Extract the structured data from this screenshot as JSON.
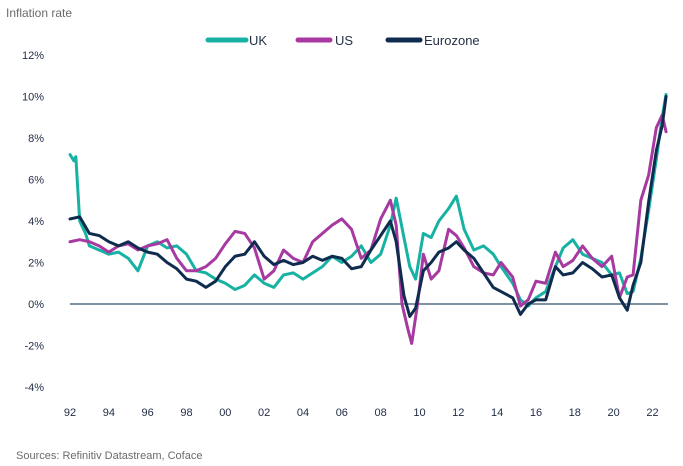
{
  "chart_data": {
    "type": "line",
    "ylabel": "Inflation rate",
    "legend_position": "top-center",
    "y_ticks": [
      "12%",
      "10%",
      "8%",
      "6%",
      "4%",
      "2%",
      "0%",
      "-2%",
      "-4%"
    ],
    "x_ticks": [
      "92",
      "94",
      "96",
      "98",
      "00",
      "02",
      "04",
      "06",
      "08",
      "10",
      "12",
      "14",
      "16",
      "18",
      "20",
      "22"
    ],
    "source": "Sources: Refinitiv Datastream, Coface",
    "ylim": [
      -4,
      12
    ],
    "xlim": [
      1992,
      2022.8
    ],
    "series": [
      {
        "name": "UK",
        "color": "#17b2a3",
        "points": [
          [
            1992.0,
            7.2
          ],
          [
            1992.2,
            6.9
          ],
          [
            1992.3,
            7.1
          ],
          [
            1992.5,
            4.0
          ],
          [
            1992.8,
            3.4
          ],
          [
            1993.0,
            2.8
          ],
          [
            1993.5,
            2.6
          ],
          [
            1994.0,
            2.4
          ],
          [
            1994.5,
            2.5
          ],
          [
            1995.0,
            2.2
          ],
          [
            1995.5,
            1.6
          ],
          [
            1996.0,
            2.8
          ],
          [
            1996.5,
            3.0
          ],
          [
            1997.0,
            2.7
          ],
          [
            1997.5,
            2.8
          ],
          [
            1998.0,
            2.4
          ],
          [
            1998.5,
            1.6
          ],
          [
            1999.0,
            1.5
          ],
          [
            1999.5,
            1.2
          ],
          [
            2000.0,
            1.0
          ],
          [
            2000.5,
            0.7
          ],
          [
            2001.0,
            0.9
          ],
          [
            2001.5,
            1.4
          ],
          [
            2002.0,
            1.0
          ],
          [
            2002.5,
            0.8
          ],
          [
            2003.0,
            1.4
          ],
          [
            2003.5,
            1.5
          ],
          [
            2004.0,
            1.2
          ],
          [
            2004.5,
            1.5
          ],
          [
            2005.0,
            1.8
          ],
          [
            2005.5,
            2.3
          ],
          [
            2006.0,
            2.0
          ],
          [
            2006.5,
            2.3
          ],
          [
            2007.0,
            2.8
          ],
          [
            2007.5,
            2.0
          ],
          [
            2008.0,
            2.4
          ],
          [
            2008.5,
            3.8
          ],
          [
            2008.8,
            5.1
          ],
          [
            2009.2,
            3.2
          ],
          [
            2009.5,
            1.8
          ],
          [
            2009.8,
            1.2
          ],
          [
            2010.2,
            3.4
          ],
          [
            2010.6,
            3.2
          ],
          [
            2011.0,
            4.0
          ],
          [
            2011.5,
            4.6
          ],
          [
            2011.9,
            5.2
          ],
          [
            2012.3,
            3.6
          ],
          [
            2012.8,
            2.6
          ],
          [
            2013.3,
            2.8
          ],
          [
            2013.8,
            2.4
          ],
          [
            2014.2,
            1.8
          ],
          [
            2014.8,
            1.0
          ],
          [
            2015.2,
            0.2
          ],
          [
            2015.6,
            -0.1
          ],
          [
            2016.0,
            0.3
          ],
          [
            2016.5,
            0.6
          ],
          [
            2017.0,
            1.8
          ],
          [
            2017.4,
            2.7
          ],
          [
            2017.9,
            3.1
          ],
          [
            2018.4,
            2.4
          ],
          [
            2018.9,
            2.2
          ],
          [
            2019.4,
            2.0
          ],
          [
            2019.9,
            1.4
          ],
          [
            2020.3,
            1.5
          ],
          [
            2020.7,
            0.5
          ],
          [
            2021.0,
            0.6
          ],
          [
            2021.4,
            2.2
          ],
          [
            2021.8,
            4.5
          ],
          [
            2022.2,
            7.0
          ],
          [
            2022.5,
            9.0
          ],
          [
            2022.7,
            10.1
          ]
        ]
      },
      {
        "name": "US",
        "color": "#a63aa1",
        "points": [
          [
            1992.0,
            3.0
          ],
          [
            1992.5,
            3.1
          ],
          [
            1993.0,
            3.0
          ],
          [
            1993.5,
            2.8
          ],
          [
            1994.0,
            2.5
          ],
          [
            1994.5,
            2.8
          ],
          [
            1995.0,
            2.9
          ],
          [
            1995.5,
            2.6
          ],
          [
            1996.0,
            2.8
          ],
          [
            1996.5,
            2.9
          ],
          [
            1997.0,
            3.1
          ],
          [
            1997.5,
            2.2
          ],
          [
            1998.0,
            1.6
          ],
          [
            1998.5,
            1.6
          ],
          [
            1999.0,
            1.8
          ],
          [
            1999.5,
            2.2
          ],
          [
            2000.0,
            2.9
          ],
          [
            2000.5,
            3.5
          ],
          [
            2001.0,
            3.4
          ],
          [
            2001.5,
            2.7
          ],
          [
            2002.0,
            1.2
          ],
          [
            2002.5,
            1.6
          ],
          [
            2003.0,
            2.6
          ],
          [
            2003.5,
            2.2
          ],
          [
            2004.0,
            2.0
          ],
          [
            2004.5,
            3.0
          ],
          [
            2005.0,
            3.4
          ],
          [
            2005.5,
            3.8
          ],
          [
            2006.0,
            4.1
          ],
          [
            2006.5,
            3.6
          ],
          [
            2007.0,
            2.2
          ],
          [
            2007.5,
            2.6
          ],
          [
            2008.0,
            4.1
          ],
          [
            2008.5,
            5.0
          ],
          [
            2008.8,
            3.8
          ],
          [
            2009.1,
            0.0
          ],
          [
            2009.4,
            -1.2
          ],
          [
            2009.6,
            -1.9
          ],
          [
            2009.9,
            0.0
          ],
          [
            2010.2,
            2.4
          ],
          [
            2010.6,
            1.2
          ],
          [
            2011.0,
            1.6
          ],
          [
            2011.5,
            3.6
          ],
          [
            2011.9,
            3.3
          ],
          [
            2012.3,
            2.7
          ],
          [
            2012.8,
            1.8
          ],
          [
            2013.3,
            1.5
          ],
          [
            2013.8,
            1.4
          ],
          [
            2014.2,
            2.0
          ],
          [
            2014.8,
            1.3
          ],
          [
            2015.2,
            -0.1
          ],
          [
            2015.6,
            0.2
          ],
          [
            2016.0,
            1.1
          ],
          [
            2016.5,
            1.0
          ],
          [
            2017.0,
            2.5
          ],
          [
            2017.4,
            1.8
          ],
          [
            2017.9,
            2.1
          ],
          [
            2018.4,
            2.8
          ],
          [
            2018.9,
            2.2
          ],
          [
            2019.4,
            1.8
          ],
          [
            2019.9,
            2.3
          ],
          [
            2020.3,
            0.3
          ],
          [
            2020.7,
            1.3
          ],
          [
            2021.0,
            1.4
          ],
          [
            2021.4,
            5.0
          ],
          [
            2021.8,
            6.2
          ],
          [
            2022.2,
            8.5
          ],
          [
            2022.5,
            9.1
          ],
          [
            2022.7,
            8.3
          ]
        ]
      },
      {
        "name": "Eurozone",
        "color": "#0f2c4f",
        "points": [
          [
            1992.0,
            4.1
          ],
          [
            1992.5,
            4.2
          ],
          [
            1993.0,
            3.4
          ],
          [
            1993.5,
            3.3
          ],
          [
            1994.0,
            3.0
          ],
          [
            1994.5,
            2.8
          ],
          [
            1995.0,
            3.0
          ],
          [
            1995.5,
            2.7
          ],
          [
            1996.0,
            2.5
          ],
          [
            1996.5,
            2.4
          ],
          [
            1997.0,
            2.0
          ],
          [
            1997.5,
            1.7
          ],
          [
            1998.0,
            1.2
          ],
          [
            1998.5,
            1.1
          ],
          [
            1999.0,
            0.8
          ],
          [
            1999.5,
            1.1
          ],
          [
            2000.0,
            1.8
          ],
          [
            2000.5,
            2.3
          ],
          [
            2001.0,
            2.4
          ],
          [
            2001.5,
            3.0
          ],
          [
            2002.0,
            2.3
          ],
          [
            2002.5,
            1.9
          ],
          [
            2003.0,
            2.1
          ],
          [
            2003.5,
            1.9
          ],
          [
            2004.0,
            2.0
          ],
          [
            2004.5,
            2.3
          ],
          [
            2005.0,
            2.1
          ],
          [
            2005.5,
            2.3
          ],
          [
            2006.0,
            2.2
          ],
          [
            2006.5,
            1.7
          ],
          [
            2007.0,
            1.8
          ],
          [
            2007.5,
            2.6
          ],
          [
            2008.0,
            3.3
          ],
          [
            2008.5,
            4.0
          ],
          [
            2008.8,
            3.0
          ],
          [
            2009.2,
            0.4
          ],
          [
            2009.5,
            -0.6
          ],
          [
            2009.8,
            -0.2
          ],
          [
            2010.2,
            1.6
          ],
          [
            2010.6,
            2.0
          ],
          [
            2011.0,
            2.5
          ],
          [
            2011.5,
            2.7
          ],
          [
            2011.9,
            3.0
          ],
          [
            2012.3,
            2.6
          ],
          [
            2012.8,
            2.2
          ],
          [
            2013.3,
            1.5
          ],
          [
            2013.8,
            0.8
          ],
          [
            2014.2,
            0.6
          ],
          [
            2014.8,
            0.3
          ],
          [
            2015.2,
            -0.5
          ],
          [
            2015.6,
            0.0
          ],
          [
            2016.0,
            0.2
          ],
          [
            2016.5,
            0.2
          ],
          [
            2017.0,
            1.8
          ],
          [
            2017.4,
            1.4
          ],
          [
            2017.9,
            1.5
          ],
          [
            2018.4,
            2.0
          ],
          [
            2018.9,
            1.7
          ],
          [
            2019.4,
            1.3
          ],
          [
            2019.9,
            1.4
          ],
          [
            2020.3,
            0.3
          ],
          [
            2020.7,
            -0.3
          ],
          [
            2021.0,
            0.9
          ],
          [
            2021.4,
            2.0
          ],
          [
            2021.8,
            4.9
          ],
          [
            2022.2,
            7.4
          ],
          [
            2022.5,
            8.6
          ],
          [
            2022.7,
            10.0
          ]
        ]
      }
    ]
  }
}
